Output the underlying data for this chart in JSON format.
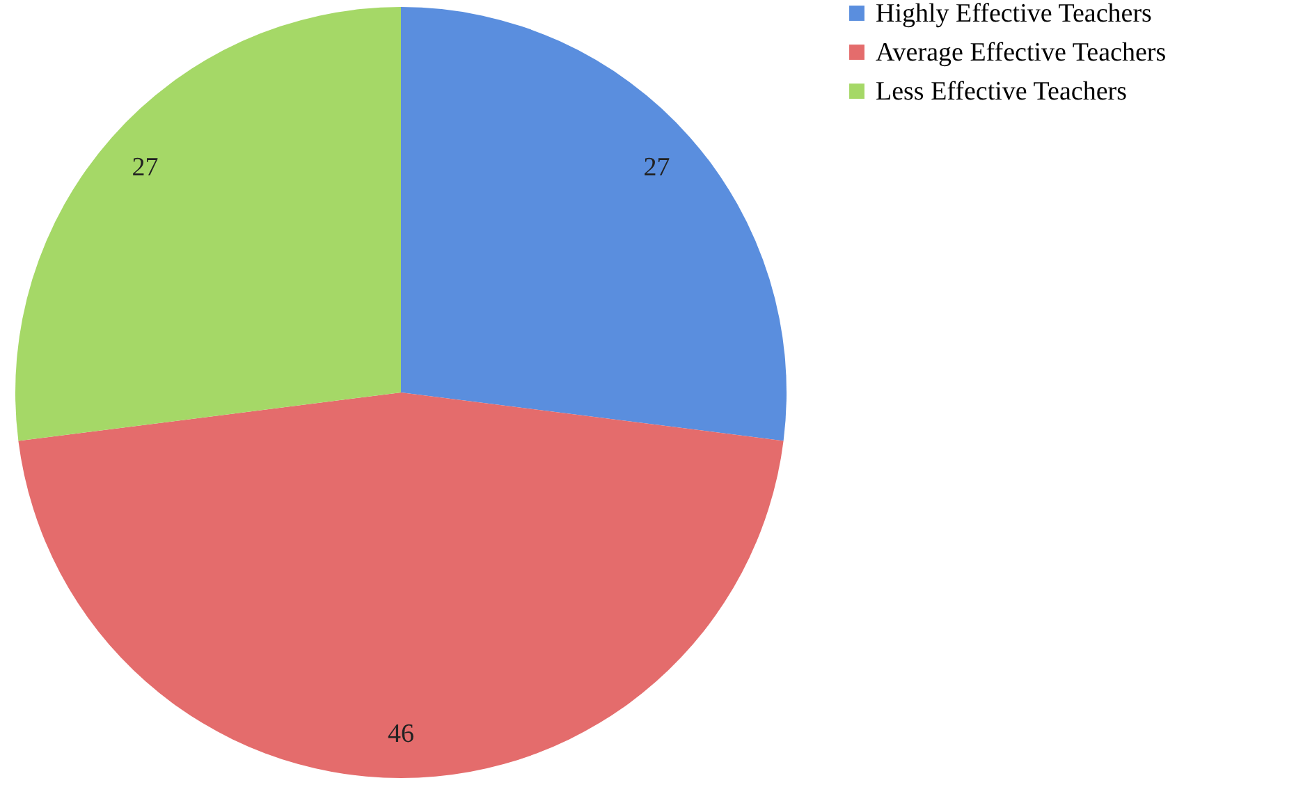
{
  "chart_data": {
    "type": "pie",
    "categories": [
      "Highly Effective Teachers",
      "Average Effective Teachers",
      "Less Effective Teachers"
    ],
    "values": [
      27,
      46,
      27
    ],
    "colors": [
      "#5a8ede",
      "#e46c6c",
      "#a5d867"
    ],
    "data_labels": true,
    "legend": "right"
  }
}
